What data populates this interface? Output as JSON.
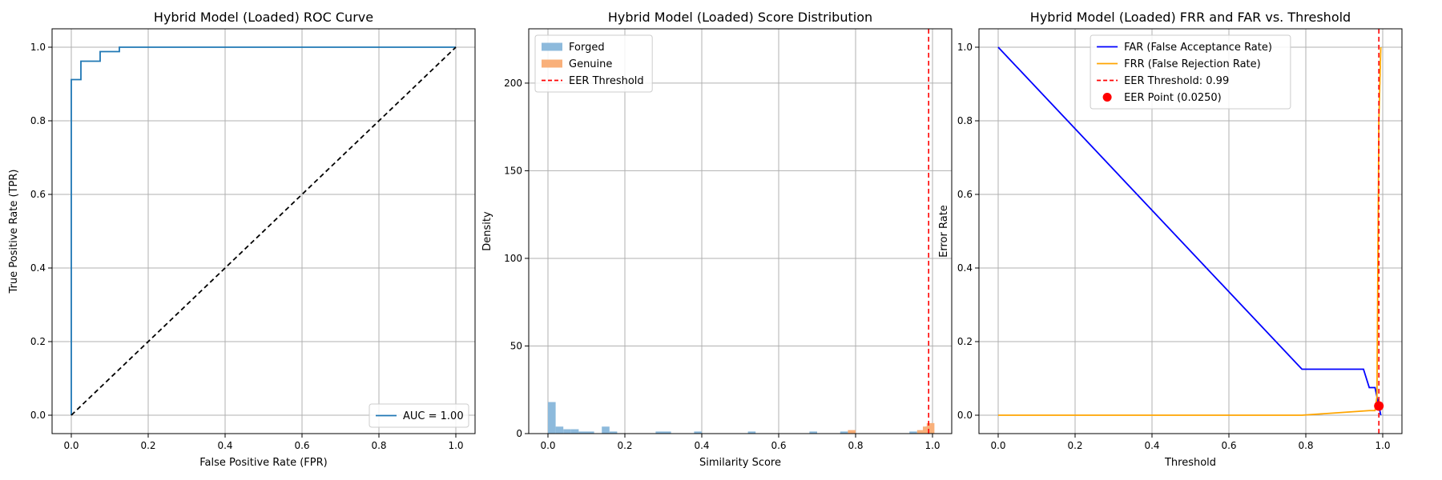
{
  "chart_data": [
    {
      "type": "line",
      "title": "Hybrid Model (Loaded) ROC Curve",
      "xlabel": "False Positive Rate (FPR)",
      "ylabel": "True Positive Rate (TPR)",
      "xlim": [
        -0.05,
        1.05
      ],
      "ylim": [
        -0.05,
        1.05
      ],
      "xticks": [
        "0.0",
        "0.2",
        "0.4",
        "0.6",
        "0.8",
        "1.0"
      ],
      "yticks": [
        "0.0",
        "0.2",
        "0.4",
        "0.6",
        "0.8",
        "1.0"
      ],
      "grid": true,
      "legend_position": "lower-right",
      "series": [
        {
          "name": "AUC = 1.00",
          "color": "#1f77b4",
          "style": "solid",
          "x": [
            0,
            0,
            0.0,
            0.025,
            0.025,
            0.075,
            0.075,
            0.125,
            0.125,
            1.0
          ],
          "y": [
            0,
            0.912,
            0.912,
            0.912,
            0.962,
            0.962,
            0.988,
            0.988,
            1.0,
            1.0
          ]
        },
        {
          "name": "",
          "color": "#000000",
          "style": "dashed",
          "x": [
            0,
            1
          ],
          "y": [
            0,
            1
          ]
        }
      ]
    },
    {
      "type": "bar",
      "title": "Hybrid Model (Loaded) Score Distribution",
      "xlabel": "Similarity Score",
      "ylabel": "Density",
      "xlim": [
        -0.05,
        1.05
      ],
      "ylim": [
        0,
        231
      ],
      "xticks": [
        "0.0",
        "0.2",
        "0.4",
        "0.6",
        "0.8",
        "1.0"
      ],
      "yticks": [
        "0",
        "50",
        "100",
        "150",
        "200"
      ],
      "grid": true,
      "legend_position": "upper-left",
      "bin_width": 0.02,
      "series": [
        {
          "name": "Forged",
          "color": "#8dbadc",
          "bins": [
            {
              "x": 0.0,
              "h": 18
            },
            {
              "x": 0.02,
              "h": 4
            },
            {
              "x": 0.04,
              "h": 2.5
            },
            {
              "x": 0.06,
              "h": 2.5
            },
            {
              "x": 0.08,
              "h": 1.2
            },
            {
              "x": 0.1,
              "h": 1.2
            },
            {
              "x": 0.14,
              "h": 4
            },
            {
              "x": 0.16,
              "h": 1.2
            },
            {
              "x": 0.28,
              "h": 1.2
            },
            {
              "x": 0.3,
              "h": 1.2
            },
            {
              "x": 0.38,
              "h": 1.2
            },
            {
              "x": 0.52,
              "h": 1.2
            },
            {
              "x": 0.68,
              "h": 1.2
            },
            {
              "x": 0.76,
              "h": 1.2
            },
            {
              "x": 0.78,
              "h": 1.2
            },
            {
              "x": 0.94,
              "h": 1.2
            },
            {
              "x": 0.98,
              "h": 4
            }
          ]
        },
        {
          "name": "Genuine",
          "color": "#f9b07a",
          "bins": [
            {
              "x": 0.78,
              "h": 2
            },
            {
              "x": 0.96,
              "h": 2
            },
            {
              "x": 0.975,
              "h": 4
            },
            {
              "x": 0.985,
              "h": 6
            }
          ]
        }
      ],
      "vlines": [
        {
          "name": "EER Threshold",
          "x": 0.99,
          "color": "#ff0000",
          "style": "dashed"
        }
      ]
    },
    {
      "type": "line",
      "title": "Hybrid Model (Loaded) FRR and FAR vs. Threshold",
      "xlabel": "Threshold",
      "ylabel": "Error Rate",
      "xlim": [
        -0.05,
        1.05
      ],
      "ylim": [
        -0.05,
        1.05
      ],
      "xticks": [
        "0.0",
        "0.2",
        "0.4",
        "0.6",
        "0.8",
        "1.0"
      ],
      "yticks": [
        "0.0",
        "0.2",
        "0.4",
        "0.6",
        "0.8",
        "1.0"
      ],
      "grid": true,
      "legend_position": "upper-center",
      "series": [
        {
          "name": "FAR (False Acceptance Rate)",
          "color": "#0000ff",
          "style": "solid",
          "x": [
            0.0,
            0.79,
            0.95,
            0.965,
            0.98,
            0.99,
            0.995
          ],
          "y": [
            1.0,
            0.125,
            0.125,
            0.075,
            0.075,
            0.025,
            0.0
          ]
        },
        {
          "name": "FRR (False Rejection Rate)",
          "color": "#ffa500",
          "style": "solid",
          "x": [
            0.0,
            0.79,
            0.965,
            0.98,
            0.985,
            0.99,
            0.995
          ],
          "y": [
            0.0,
            0.0,
            0.0125,
            0.0125,
            0.05,
            0.8,
            1.0
          ]
        }
      ],
      "vlines": [
        {
          "name": "EER Threshold: 0.99",
          "x": 0.99,
          "color": "#ff0000",
          "style": "dashed"
        }
      ],
      "points": [
        {
          "name": "EER Point (0.0250)",
          "x": 0.99,
          "y": 0.025,
          "color": "#ff0000"
        }
      ]
    }
  ]
}
